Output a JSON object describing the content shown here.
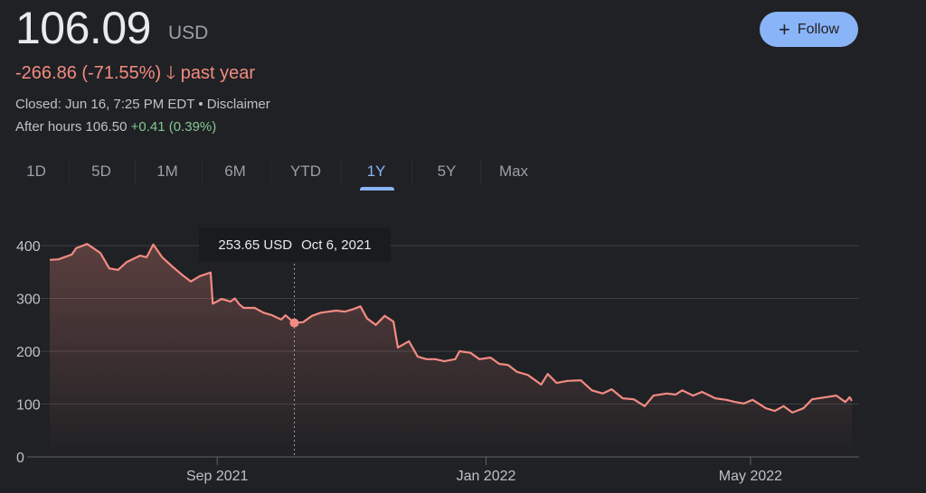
{
  "header": {
    "price": "106.09",
    "currency": "USD",
    "change": "-266.86 (-71.55%)",
    "change_arrow_icon": "arrow-down-icon",
    "change_period": "past year",
    "closed": "Closed: Jun 16, 7:25 PM EDT • Disclaimer",
    "after_hours_label": "After hours 106.50",
    "after_hours_change": "+0.41 (0.39%)",
    "follow_label": "Follow",
    "follow_icon": "plus-icon"
  },
  "colors": {
    "background": "#202124",
    "line": "#f28b82",
    "accent": "#8ab4f8",
    "positive": "#81c995"
  },
  "tabs": [
    {
      "label": "1D"
    },
    {
      "label": "5D"
    },
    {
      "label": "1M"
    },
    {
      "label": "6M"
    },
    {
      "label": "YTD"
    },
    {
      "label": "1Y",
      "active": true
    },
    {
      "label": "5Y"
    },
    {
      "label": "Max"
    }
  ],
  "tooltip": {
    "value": "253.65 USD",
    "date": "Oct 6, 2021"
  },
  "chart_data": {
    "type": "area",
    "xlim": [
      "2021-06-17",
      "2022-06-16"
    ],
    "ylim": [
      0,
      400
    ],
    "yticks": [
      0,
      100,
      200,
      300,
      400
    ],
    "xticks": [
      {
        "date": "2021-09-01",
        "label": "Sep 2021"
      },
      {
        "date": "2022-01-01",
        "label": "Jan 2022"
      },
      {
        "date": "2022-05-01",
        "label": "May 2022"
      }
    ],
    "grid": true,
    "highlight": {
      "date": "2021-10-06",
      "value": 253.65
    },
    "points": [
      [
        "2021-06-17",
        373
      ],
      [
        "2021-06-21",
        374
      ],
      [
        "2021-06-27",
        383
      ],
      [
        "2021-06-29",
        395
      ],
      [
        "2021-07-04",
        403
      ],
      [
        "2021-07-10",
        386
      ],
      [
        "2021-07-14",
        357
      ],
      [
        "2021-07-18",
        354
      ],
      [
        "2021-07-22",
        369
      ],
      [
        "2021-07-28",
        381
      ],
      [
        "2021-07-31",
        378
      ],
      [
        "2021-08-03",
        402
      ],
      [
        "2021-08-07",
        378
      ],
      [
        "2021-08-12",
        359
      ],
      [
        "2021-08-16",
        345
      ],
      [
        "2021-08-20",
        332
      ],
      [
        "2021-08-24",
        342
      ],
      [
        "2021-08-29",
        349
      ],
      [
        "2021-08-30",
        290
      ],
      [
        "2021-09-03",
        299
      ],
      [
        "2021-09-07",
        294
      ],
      [
        "2021-09-09",
        300
      ],
      [
        "2021-09-11",
        289
      ],
      [
        "2021-09-13",
        282
      ],
      [
        "2021-09-18",
        282
      ],
      [
        "2021-09-22",
        273
      ],
      [
        "2021-09-26",
        268
      ],
      [
        "2021-09-30",
        260
      ],
      [
        "2021-10-02",
        268
      ],
      [
        "2021-10-06",
        253.65
      ],
      [
        "2021-10-10",
        255
      ],
      [
        "2021-10-14",
        267
      ],
      [
        "2021-10-18",
        273
      ],
      [
        "2021-10-25",
        277
      ],
      [
        "2021-10-29",
        275
      ],
      [
        "2021-11-02",
        280
      ],
      [
        "2021-11-05",
        285
      ],
      [
        "2021-11-08",
        262
      ],
      [
        "2021-11-12",
        250
      ],
      [
        "2021-11-16",
        267
      ],
      [
        "2021-11-20",
        256
      ],
      [
        "2021-11-22",
        207
      ],
      [
        "2021-11-27",
        219
      ],
      [
        "2021-12-01",
        190
      ],
      [
        "2021-12-05",
        185
      ],
      [
        "2021-12-09",
        185
      ],
      [
        "2021-12-13",
        181
      ],
      [
        "2021-12-18",
        185
      ],
      [
        "2021-12-20",
        200
      ],
      [
        "2021-12-25",
        197
      ],
      [
        "2021-12-29",
        185
      ],
      [
        "2022-01-03",
        188
      ],
      [
        "2022-01-07",
        176
      ],
      [
        "2022-01-11",
        174
      ],
      [
        "2022-01-15",
        161
      ],
      [
        "2022-01-20",
        155
      ],
      [
        "2022-01-26",
        137
      ],
      [
        "2022-01-29",
        157
      ],
      [
        "2022-02-02",
        140
      ],
      [
        "2022-02-07",
        144
      ],
      [
        "2022-02-13",
        145
      ],
      [
        "2022-02-18",
        126
      ],
      [
        "2022-02-23",
        120
      ],
      [
        "2022-02-27",
        128
      ],
      [
        "2022-03-04",
        111
      ],
      [
        "2022-03-09",
        109
      ],
      [
        "2022-03-14",
        96
      ],
      [
        "2022-03-18",
        116
      ],
      [
        "2022-03-24",
        120
      ],
      [
        "2022-03-28",
        118
      ],
      [
        "2022-03-31",
        126
      ],
      [
        "2022-04-05",
        116
      ],
      [
        "2022-04-09",
        123
      ],
      [
        "2022-04-15",
        111
      ],
      [
        "2022-04-20",
        108
      ],
      [
        "2022-04-24",
        104
      ],
      [
        "2022-04-28",
        101
      ],
      [
        "2022-05-02",
        108
      ],
      [
        "2022-05-08",
        92
      ],
      [
        "2022-05-12",
        87
      ],
      [
        "2022-05-16",
        96
      ],
      [
        "2022-05-20",
        84
      ],
      [
        "2022-05-25",
        92
      ],
      [
        "2022-05-29",
        109
      ],
      [
        "2022-06-04",
        113
      ],
      [
        "2022-06-09",
        116
      ],
      [
        "2022-06-13",
        104
      ],
      [
        "2022-06-15",
        113
      ],
      [
        "2022-06-16",
        106.09
      ]
    ]
  }
}
